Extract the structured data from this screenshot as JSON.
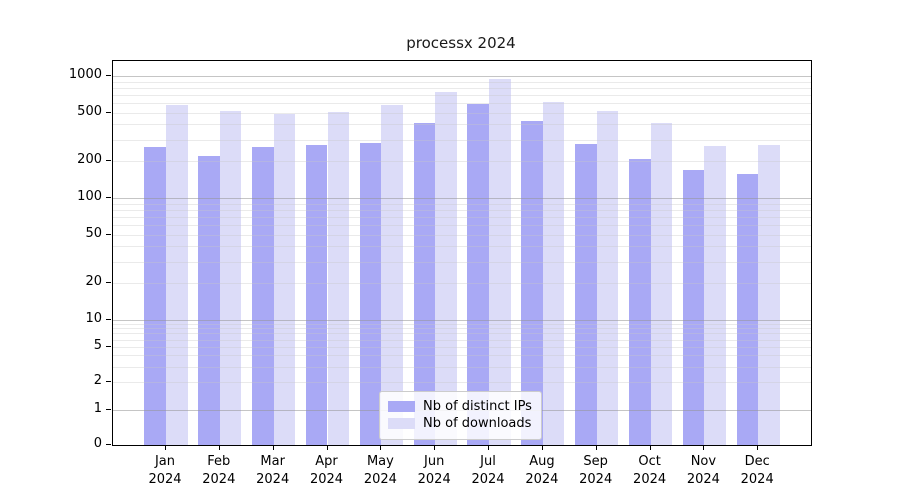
{
  "chart_data": {
    "type": "bar",
    "title": "processx 2024",
    "scale": "pseudo-log (symlog-like, linear below 1)",
    "months": [
      "Jan",
      "Feb",
      "Mar",
      "Apr",
      "May",
      "Jun",
      "Jul",
      "Aug",
      "Sep",
      "Oct",
      "Nov",
      "Dec"
    ],
    "year_label": "2024",
    "y_ticks": [
      1000,
      500,
      200,
      100,
      50,
      20,
      10,
      5,
      2,
      1,
      0
    ],
    "ylim": [
      0,
      1300
    ],
    "grid": "horizontal major+minor, drawn over bars",
    "legend_position": "lower center",
    "series": [
      {
        "name": "Nb of distinct IPs",
        "color": "#a9a9f5",
        "values": [
          261,
          220,
          261,
          272,
          283,
          415,
          585,
          425,
          278,
          208,
          170,
          158
        ]
      },
      {
        "name": "Nb of downloads",
        "color": "#dcdcf8",
        "values": [
          575,
          515,
          490,
          505,
          580,
          745,
          950,
          610,
          515,
          410,
          265,
          270
        ]
      }
    ],
    "colors": {
      "axis": "#000000",
      "grid_major": "#c6c6c6",
      "grid_minor": "#e4e4e4",
      "background": "#ffffff"
    }
  }
}
